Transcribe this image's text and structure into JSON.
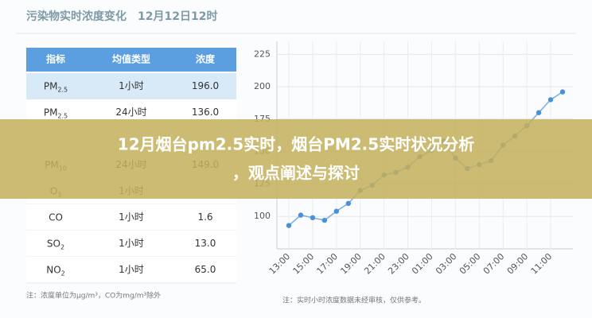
{
  "header": {
    "title": "污染物实时浓度变化",
    "time": "12月12日12时"
  },
  "table": {
    "header": [
      "指标",
      "均值类型",
      "浓度"
    ],
    "rows": [
      [
        {
          "name": "PM",
          "sub": "2.5"
        },
        "1小时",
        "196.0"
      ],
      [
        {
          "name": "PM",
          "sub": "2.5"
        },
        "24小时",
        "136.0"
      ],
      [
        {
          "name": "PM",
          "sub": "10"
        },
        "24小时",
        "149.0"
      ],
      [
        {
          "name": "O",
          "sub": "3"
        },
        "1小时"
      ],
      [
        {
          "name": "CO"
        },
        "1小时",
        "1.6"
      ],
      [
        {
          "name": "SO",
          "sub": "2"
        },
        "1小时",
        "13.0"
      ],
      [
        {
          "name": "NO",
          "sub": "2"
        },
        "1小时",
        "65.0"
      ]
    ],
    "note": "注：浓度单位为μg/m³，CO为mg/m³除外"
  },
  "chart_data": {
    "type": "line",
    "categories": [
      "13:00",
      null,
      "15:00",
      null,
      "17:00",
      null,
      "19:00",
      null,
      "21:00",
      null,
      "23:00",
      null,
      "01:00",
      null,
      "03:00",
      null,
      "05:00",
      null,
      "07:00",
      null,
      "09:00",
      null,
      "11:00",
      null
    ],
    "series": [
      {
        "color": "#7fb2e5",
        "values": [
          93,
          101,
          99,
          97,
          104,
          110,
          120,
          124,
          132,
          134,
          138,
          146,
          151,
          158,
          145,
          137,
          140,
          143,
          155,
          162,
          170,
          180,
          190,
          196
        ]
      }
    ],
    "ylim": [
      75,
      235
    ],
    "yticks": [
      100,
      125,
      150,
      175,
      200,
      225
    ],
    "grid": true,
    "note": "注：实时小时浓度数据未经审核，仅供参考。"
  },
  "banner": {
    "lines": [
      "12月烟台pm2.5实时，烟台PM2.5实时状况分析",
      "，观点阐述与探讨"
    ]
  }
}
